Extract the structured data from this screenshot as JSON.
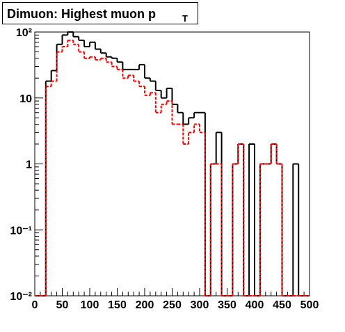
{
  "chart_data": {
    "type": "histogram",
    "title": "Dimuon: Highest muon p",
    "title_subscript": "T",
    "bins": [
      0,
      10,
      20,
      30,
      40,
      50,
      60,
      70,
      80,
      90,
      100,
      110,
      120,
      130,
      140,
      150,
      160,
      170,
      180,
      190,
      200,
      210,
      220,
      230,
      240,
      250,
      260,
      270,
      280,
      290,
      300,
      310,
      320,
      330,
      340,
      350,
      360,
      370,
      380,
      390,
      400,
      410,
      420,
      430,
      440,
      450,
      460,
      470,
      480,
      490,
      500
    ],
    "series": [
      {
        "color": "#000000",
        "dashed": false,
        "values": [
          0,
          0,
          18,
          26,
          65,
          90,
          105,
          85,
          75,
          60,
          70,
          55,
          48,
          42,
          40,
          35,
          27,
          27,
          27,
          32,
          20,
          18,
          13,
          10,
          14,
          8,
          6,
          4,
          5,
          6,
          6,
          0,
          1,
          3,
          0,
          0,
          1,
          2,
          0,
          2,
          0,
          1,
          1,
          2,
          1,
          0,
          0,
          1,
          0,
          0
        ]
      },
      {
        "color": "#ff0000",
        "dashed": true,
        "values": [
          0,
          0,
          15,
          18,
          50,
          60,
          75,
          65,
          50,
          40,
          42,
          38,
          40,
          35,
          30,
          27,
          20,
          22,
          18,
          15,
          11,
          12,
          6,
          8,
          9,
          4,
          4,
          2,
          3,
          4,
          3,
          0,
          1,
          1,
          0,
          0,
          1,
          2,
          0,
          0,
          0,
          1,
          1,
          2,
          1,
          0,
          0,
          0,
          0,
          0
        ]
      }
    ],
    "xlim": [
      0,
      500
    ],
    "xticks": [
      0,
      50,
      100,
      150,
      200,
      250,
      300,
      350,
      400,
      450,
      500
    ],
    "ylim": [
      0.01,
      100
    ],
    "log_y": true,
    "yticks": [
      {
        "value": 0.01,
        "label": "10⁻²"
      },
      {
        "value": 0.1,
        "label": "10⁻¹"
      },
      1,
      10,
      {
        "value": 100,
        "label": "10²"
      }
    ]
  }
}
